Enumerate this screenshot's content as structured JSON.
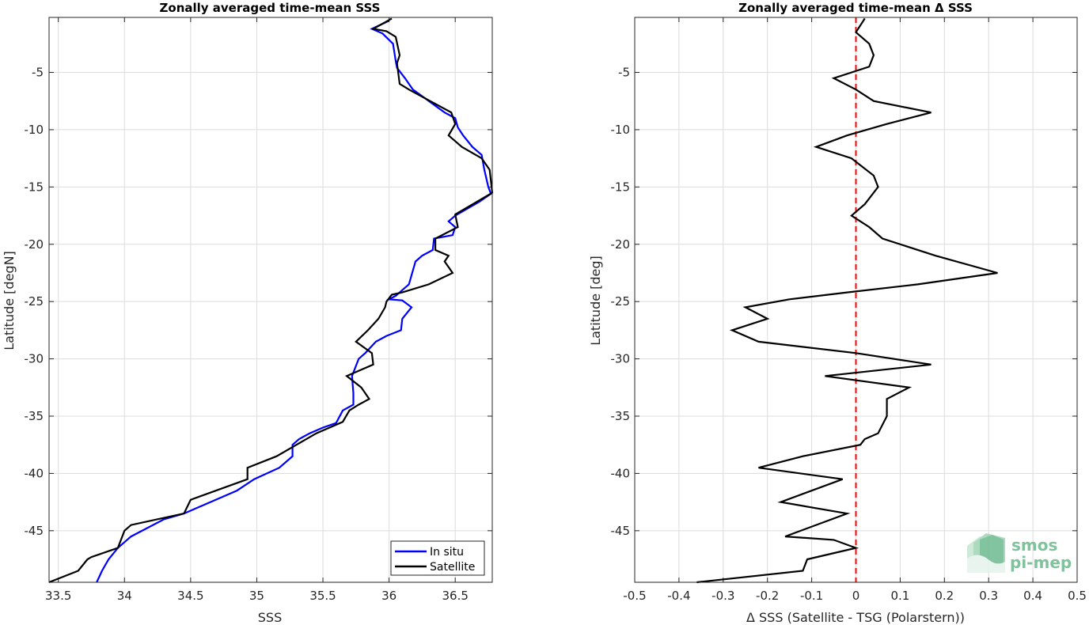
{
  "chart_data": [
    {
      "type": "line",
      "title": "Zonally averaged time-mean SSS",
      "xlabel": "SSS",
      "ylabel": "Latitude [degN]",
      "xlim": [
        33.43,
        36.78
      ],
      "ylim": [
        -49.5,
        -0.2
      ],
      "xticks": [
        "33.5",
        "34",
        "34.5",
        "35",
        "35.5",
        "36",
        "36.5"
      ],
      "xtick_values": [
        33.5,
        34,
        34.5,
        35,
        35.5,
        36,
        36.5
      ],
      "yticks": [
        "-5",
        "-10",
        "-15",
        "-20",
        "-25",
        "-30",
        "-35",
        "-40",
        "-45"
      ],
      "ytick_values": [
        -5,
        -10,
        -15,
        -20,
        -25,
        -30,
        -35,
        -40,
        -45
      ],
      "grid": true,
      "legend_position": "bottom-right",
      "series": [
        {
          "name": "In situ",
          "color": "#0000ff",
          "points": [
            [
              36.0,
              -0.5
            ],
            [
              35.87,
              -1.2
            ],
            [
              35.95,
              -1.6
            ],
            [
              36.03,
              -2.5
            ],
            [
              36.05,
              -4.0
            ],
            [
              36.06,
              -4.6
            ],
            [
              36.12,
              -5.5
            ],
            [
              36.18,
              -6.5
            ],
            [
              36.3,
              -7.5
            ],
            [
              36.42,
              -8.5
            ],
            [
              36.5,
              -9.0
            ],
            [
              36.52,
              -9.8
            ],
            [
              36.56,
              -10.5
            ],
            [
              36.63,
              -11.5
            ],
            [
              36.7,
              -12.2
            ],
            [
              36.72,
              -13.5
            ],
            [
              36.75,
              -15.0
            ],
            [
              36.77,
              -15.6
            ],
            [
              36.68,
              -16.3
            ],
            [
              36.5,
              -17.5
            ],
            [
              36.45,
              -18.0
            ],
            [
              36.5,
              -18.5
            ],
            [
              36.48,
              -19.2
            ],
            [
              36.34,
              -19.5
            ],
            [
              36.33,
              -20.5
            ],
            [
              36.25,
              -21.0
            ],
            [
              36.2,
              -21.5
            ],
            [
              36.15,
              -23.5
            ],
            [
              36.05,
              -24.5
            ],
            [
              36.0,
              -24.8
            ],
            [
              36.1,
              -24.9
            ],
            [
              36.17,
              -25.5
            ],
            [
              36.1,
              -26.5
            ],
            [
              36.09,
              -27.5
            ],
            [
              35.98,
              -28.0
            ],
            [
              35.9,
              -28.5
            ],
            [
              35.82,
              -29.5
            ],
            [
              35.77,
              -30.0
            ],
            [
              35.72,
              -31.5
            ],
            [
              35.73,
              -33.0
            ],
            [
              35.73,
              -34.0
            ],
            [
              35.65,
              -34.5
            ],
            [
              35.6,
              -35.6
            ],
            [
              35.5,
              -36.0
            ],
            [
              35.4,
              -36.5
            ],
            [
              35.32,
              -37.0
            ],
            [
              35.27,
              -37.5
            ],
            [
              35.27,
              -38.5
            ],
            [
              35.17,
              -39.5
            ],
            [
              34.98,
              -40.5
            ],
            [
              34.85,
              -41.5
            ],
            [
              34.65,
              -42.5
            ],
            [
              34.45,
              -43.5
            ],
            [
              34.3,
              -44.0
            ],
            [
              34.05,
              -45.5
            ],
            [
              33.95,
              -46.5
            ],
            [
              33.88,
              -47.5
            ],
            [
              33.83,
              -48.5
            ],
            [
              33.79,
              -49.5
            ]
          ]
        },
        {
          "name": "Satellite",
          "color": "#000000",
          "points": [
            [
              36.02,
              -0.3
            ],
            [
              35.88,
              -1.2
            ],
            [
              35.98,
              -1.4
            ],
            [
              36.05,
              -1.9
            ],
            [
              36.08,
              -3.5
            ],
            [
              36.06,
              -4.2
            ],
            [
              36.08,
              -6.0
            ],
            [
              36.15,
              -6.5
            ],
            [
              36.47,
              -8.5
            ],
            [
              36.5,
              -9.5
            ],
            [
              36.45,
              -10.5
            ],
            [
              36.55,
              -11.5
            ],
            [
              36.7,
              -12.5
            ],
            [
              36.76,
              -13.5
            ],
            [
              36.78,
              -15.5
            ],
            [
              36.5,
              -17.4
            ],
            [
              36.52,
              -18.5
            ],
            [
              36.35,
              -19.5
            ],
            [
              36.35,
              -20.5
            ],
            [
              36.45,
              -21.0
            ],
            [
              36.42,
              -21.5
            ],
            [
              36.48,
              -22.5
            ],
            [
              36.3,
              -23.5
            ],
            [
              36.1,
              -24.2
            ],
            [
              36.02,
              -24.4
            ],
            [
              35.98,
              -25.0
            ],
            [
              35.97,
              -25.5
            ],
            [
              35.92,
              -26.5
            ],
            [
              35.84,
              -27.5
            ],
            [
              35.75,
              -28.5
            ],
            [
              35.87,
              -29.5
            ],
            [
              35.88,
              -30.5
            ],
            [
              35.68,
              -31.5
            ],
            [
              35.79,
              -32.5
            ],
            [
              35.85,
              -33.5
            ],
            [
              35.77,
              -34.0
            ],
            [
              35.7,
              -34.5
            ],
            [
              35.65,
              -35.5
            ],
            [
              35.45,
              -36.5
            ],
            [
              35.3,
              -37.5
            ],
            [
              35.15,
              -38.5
            ],
            [
              34.93,
              -39.5
            ],
            [
              34.93,
              -40.5
            ],
            [
              34.5,
              -42.3
            ],
            [
              34.45,
              -43.5
            ],
            [
              34.05,
              -44.5
            ],
            [
              34.0,
              -45.0
            ],
            [
              33.95,
              -46.5
            ],
            [
              33.75,
              -47.3
            ],
            [
              33.72,
              -47.5
            ],
            [
              33.65,
              -48.5
            ],
            [
              33.43,
              -49.5
            ]
          ]
        }
      ]
    },
    {
      "type": "line",
      "title": "Zonally averaged time-mean Δ SSS",
      "xlabel": "Δ SSS (Satellite - TSG (Polarstern))",
      "ylabel": "Latitude [deg]",
      "xlim": [
        -0.5,
        0.5
      ],
      "ylim": [
        -49.5,
        -0.2
      ],
      "xticks": [
        "-0.5",
        "-0.4",
        "-0.3",
        "-0.2",
        "-0.1",
        "0",
        "0.1",
        "0.2",
        "0.3",
        "0.4",
        "0.5"
      ],
      "xtick_values": [
        -0.5,
        -0.4,
        -0.3,
        -0.2,
        -0.1,
        0,
        0.1,
        0.2,
        0.3,
        0.4,
        0.5
      ],
      "yticks": [
        "-5",
        "-10",
        "-15",
        "-20",
        "-25",
        "-30",
        "-35",
        "-40",
        "-45"
      ],
      "ytick_values": [
        -5,
        -10,
        -15,
        -20,
        -25,
        -30,
        -35,
        -40,
        -45
      ],
      "grid": true,
      "reference_line": {
        "x": 0,
        "color": "#ff0000",
        "style": "dashed"
      },
      "series": [
        {
          "color": "#000000",
          "points": [
            [
              0.02,
              -0.3
            ],
            [
              0.0,
              -1.5
            ],
            [
              0.03,
              -2.5
            ],
            [
              0.04,
              -3.5
            ],
            [
              0.03,
              -4.5
            ],
            [
              -0.05,
              -5.5
            ],
            [
              0.0,
              -6.5
            ],
            [
              0.04,
              -7.5
            ],
            [
              0.17,
              -8.5
            ],
            [
              0.07,
              -9.5
            ],
            [
              -0.02,
              -10.5
            ],
            [
              -0.09,
              -11.5
            ],
            [
              -0.01,
              -12.5
            ],
            [
              0.04,
              -14.0
            ],
            [
              0.05,
              -15.0
            ],
            [
              0.02,
              -16.5
            ],
            [
              -0.01,
              -17.5
            ],
            [
              0.03,
              -18.5
            ],
            [
              0.06,
              -19.5
            ],
            [
              0.18,
              -21.0
            ],
            [
              0.32,
              -22.5
            ],
            [
              0.14,
              -23.5
            ],
            [
              -0.02,
              -24.2
            ],
            [
              -0.15,
              -24.8
            ],
            [
              -0.25,
              -25.5
            ],
            [
              -0.2,
              -26.5
            ],
            [
              -0.28,
              -27.5
            ],
            [
              -0.22,
              -28.5
            ],
            [
              0.0,
              -29.5
            ],
            [
              0.17,
              -30.5
            ],
            [
              -0.07,
              -31.5
            ],
            [
              0.12,
              -32.5
            ],
            [
              0.07,
              -33.5
            ],
            [
              0.07,
              -35.0
            ],
            [
              0.05,
              -36.5
            ],
            [
              0.02,
              -37.0
            ],
            [
              0.01,
              -37.5
            ],
            [
              -0.12,
              -38.5
            ],
            [
              -0.22,
              -39.5
            ],
            [
              -0.03,
              -40.5
            ],
            [
              -0.17,
              -42.5
            ],
            [
              -0.02,
              -43.5
            ],
            [
              -0.16,
              -45.5
            ],
            [
              -0.05,
              -45.8
            ],
            [
              0.0,
              -46.5
            ],
            [
              -0.11,
              -47.5
            ],
            [
              -0.12,
              -48.5
            ],
            [
              -0.36,
              -49.5
            ]
          ]
        }
      ]
    }
  ],
  "logo": {
    "line1": "smos",
    "line2": "pi-mep",
    "color": "#7fc29b"
  }
}
